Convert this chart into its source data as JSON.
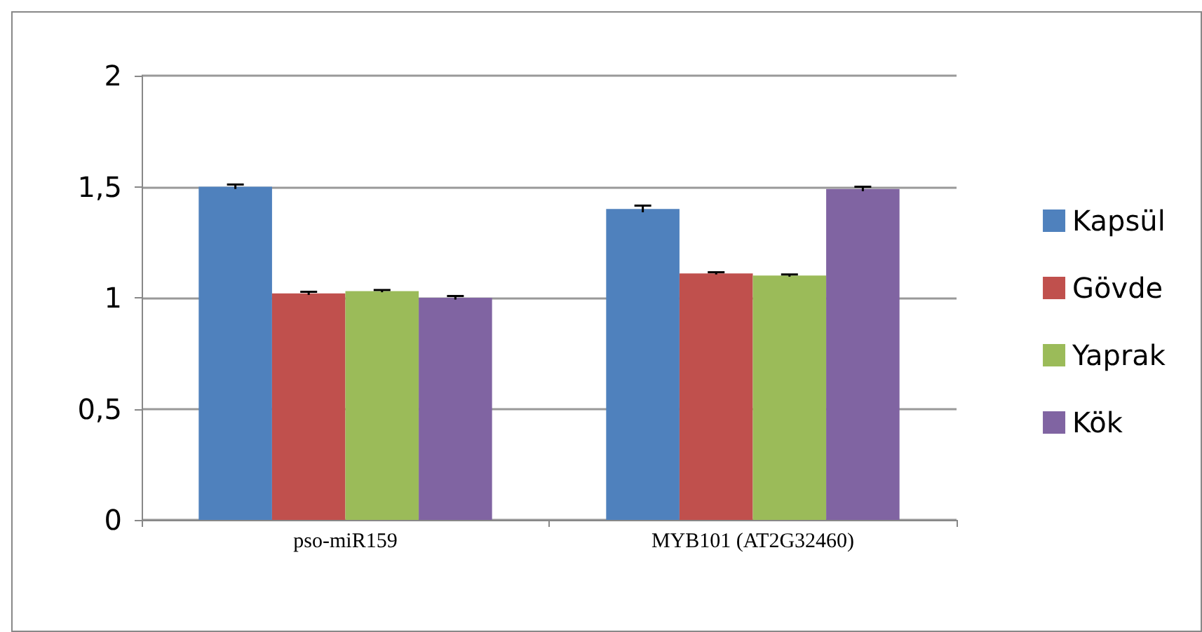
{
  "chart_data": {
    "type": "bar",
    "categories": [
      "pso-miR159",
      "MYB101 (AT2G32460)"
    ],
    "series": [
      {
        "name": "Kapsül",
        "color": "#4f81bd",
        "values": [
          1.5,
          1.4
        ],
        "errors": [
          0.01,
          0.015
        ]
      },
      {
        "name": "Gövde",
        "color": "#c0504d",
        "values": [
          1.02,
          1.11
        ],
        "errors": [
          0.007,
          0.005
        ]
      },
      {
        "name": "Yaprak",
        "color": "#9bbb59",
        "values": [
          1.03,
          1.1
        ],
        "errors": [
          0.005,
          0.005
        ]
      },
      {
        "name": "Kök",
        "color": "#8064a2",
        "values": [
          1.0,
          1.49
        ],
        "errors": [
          0.008,
          0.01
        ]
      }
    ],
    "ylim": [
      0,
      2
    ],
    "yticks": [
      0,
      {
        "value": 0.5,
        "label": "0,5"
      },
      1,
      {
        "value": 1.5,
        "label": "1,5"
      },
      2
    ],
    "grid": "y",
    "legend": "right"
  }
}
